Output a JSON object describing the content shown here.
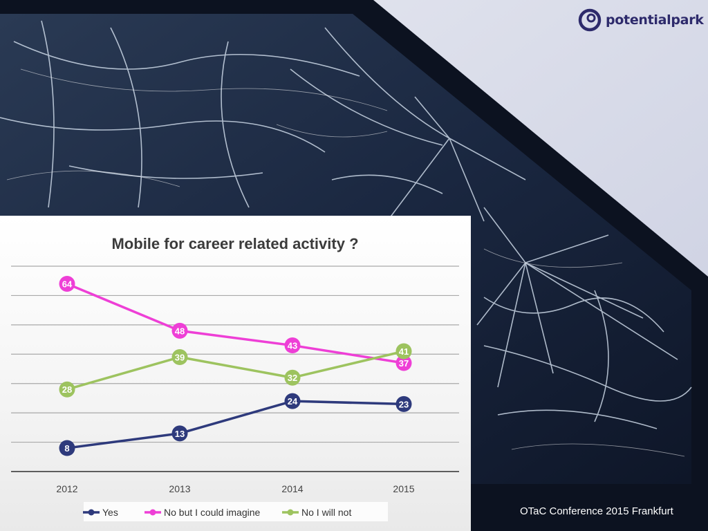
{
  "logo": {
    "text": "potentialpark",
    "color": "#2d2a6b"
  },
  "footer": {
    "text": "OTaC Conference 2015 Frankfurt"
  },
  "chart_data": {
    "type": "line",
    "title": "Mobile for career related activity ?",
    "categories": [
      "2012",
      "2013",
      "2014",
      "2015"
    ],
    "series": [
      {
        "name": "Yes",
        "values": [
          8,
          13,
          24,
          23
        ],
        "color": "#2e3a7c"
      },
      {
        "name": "No but I could imagine",
        "values": [
          64,
          48,
          43,
          37
        ],
        "color": "#ee3fd6"
      },
      {
        "name": "No I will not",
        "values": [
          28,
          39,
          32,
          41
        ],
        "color": "#9dc35f"
      }
    ],
    "ylim": [
      0,
      70
    ],
    "grid": true,
    "legend": "bottom"
  }
}
